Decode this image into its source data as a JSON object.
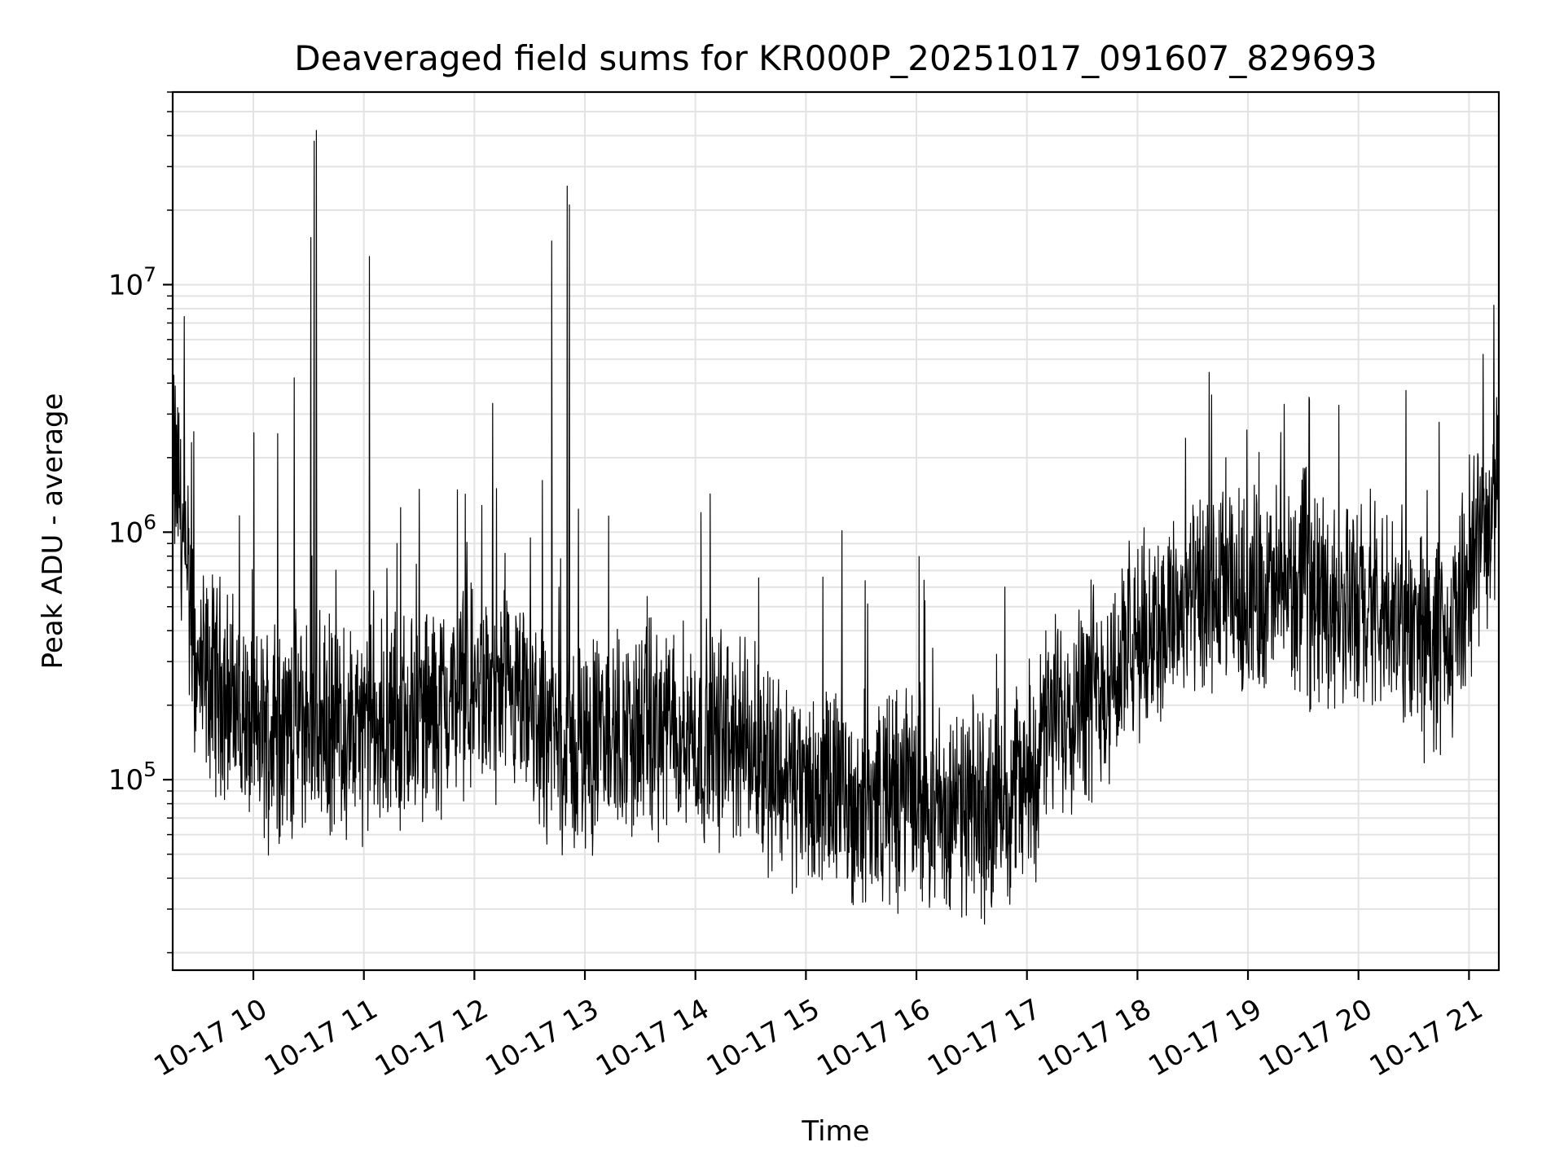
{
  "chart_data": {
    "type": "line",
    "title": "Deaveraged field sums for KR000P_20251017_091607_829693",
    "xlabel": "Time",
    "ylabel": "Peak ADU - average",
    "yscale": "log",
    "ylim": [
      17000,
      60000000
    ],
    "xlim_hours": [
      9.27,
      21.27
    ],
    "grid": true,
    "x_ticks": [
      {
        "hour": 10,
        "label": "10-17 10"
      },
      {
        "hour": 11,
        "label": "10-17 11"
      },
      {
        "hour": 12,
        "label": "10-17 12"
      },
      {
        "hour": 13,
        "label": "10-17 13"
      },
      {
        "hour": 14,
        "label": "10-17 14"
      },
      {
        "hour": 15,
        "label": "10-17 15"
      },
      {
        "hour": 16,
        "label": "10-17 16"
      },
      {
        "hour": 17,
        "label": "10-17 17"
      },
      {
        "hour": 18,
        "label": "10-17 18"
      },
      {
        "hour": 19,
        "label": "10-17 19"
      },
      {
        "hour": 20,
        "label": "10-17 20"
      },
      {
        "hour": 21,
        "label": "10-17 21"
      }
    ],
    "y_ticks": [
      {
        "value": 100000,
        "base": "10",
        "exp": "5"
      },
      {
        "value": 1000000,
        "base": "10",
        "exp": "6"
      },
      {
        "value": 10000000,
        "base": "10",
        "exp": "7"
      }
    ],
    "series": [
      {
        "name": "Peak ADU - average",
        "color": "#000000",
        "baseline": [
          [
            9.27,
            1800000
          ],
          [
            9.33,
            1500000
          ],
          [
            9.4,
            500000
          ],
          [
            9.5,
            250000
          ],
          [
            9.7,
            250000
          ],
          [
            10.0,
            150000
          ],
          [
            10.5,
            170000
          ],
          [
            11.0,
            150000
          ],
          [
            11.5,
            180000
          ],
          [
            12.0,
            230000
          ],
          [
            12.5,
            180000
          ],
          [
            12.85,
            130000
          ],
          [
            13.2,
            150000
          ],
          [
            13.8,
            160000
          ],
          [
            14.5,
            140000
          ],
          [
            15.0,
            90000
          ],
          [
            15.5,
            80000
          ],
          [
            16.0,
            90000
          ],
          [
            16.3,
            70000
          ],
          [
            16.7,
            80000
          ],
          [
            17.0,
            100000
          ],
          [
            17.3,
            200000
          ],
          [
            17.7,
            250000
          ],
          [
            18.0,
            350000
          ],
          [
            18.4,
            500000
          ],
          [
            19.0,
            550000
          ],
          [
            19.5,
            600000
          ],
          [
            19.9,
            500000
          ],
          [
            20.5,
            400000
          ],
          [
            20.8,
            300000
          ],
          [
            21.0,
            700000
          ],
          [
            21.27,
            1500000
          ]
        ],
        "spikes": [
          [
            9.28,
            4300000
          ],
          [
            9.44,
            2300000
          ],
          [
            10.22,
            2500000
          ],
          [
            10.37,
            4200000
          ],
          [
            10.52,
            15500000
          ],
          [
            10.55,
            38000000
          ],
          [
            10.57,
            30000000
          ],
          [
            10.57,
            42000000
          ],
          [
            11.05,
            13000000
          ],
          [
            11.3,
            900000
          ],
          [
            12.2,
            1500000
          ],
          [
            12.7,
            15000000
          ],
          [
            12.84,
            25000000
          ],
          [
            12.86,
            21000000
          ],
          [
            14.05,
            1200000
          ],
          [
            18.8,
            2000000
          ],
          [
            19.1,
            2100000
          ],
          [
            21.25,
            3500000
          ]
        ]
      }
    ]
  }
}
